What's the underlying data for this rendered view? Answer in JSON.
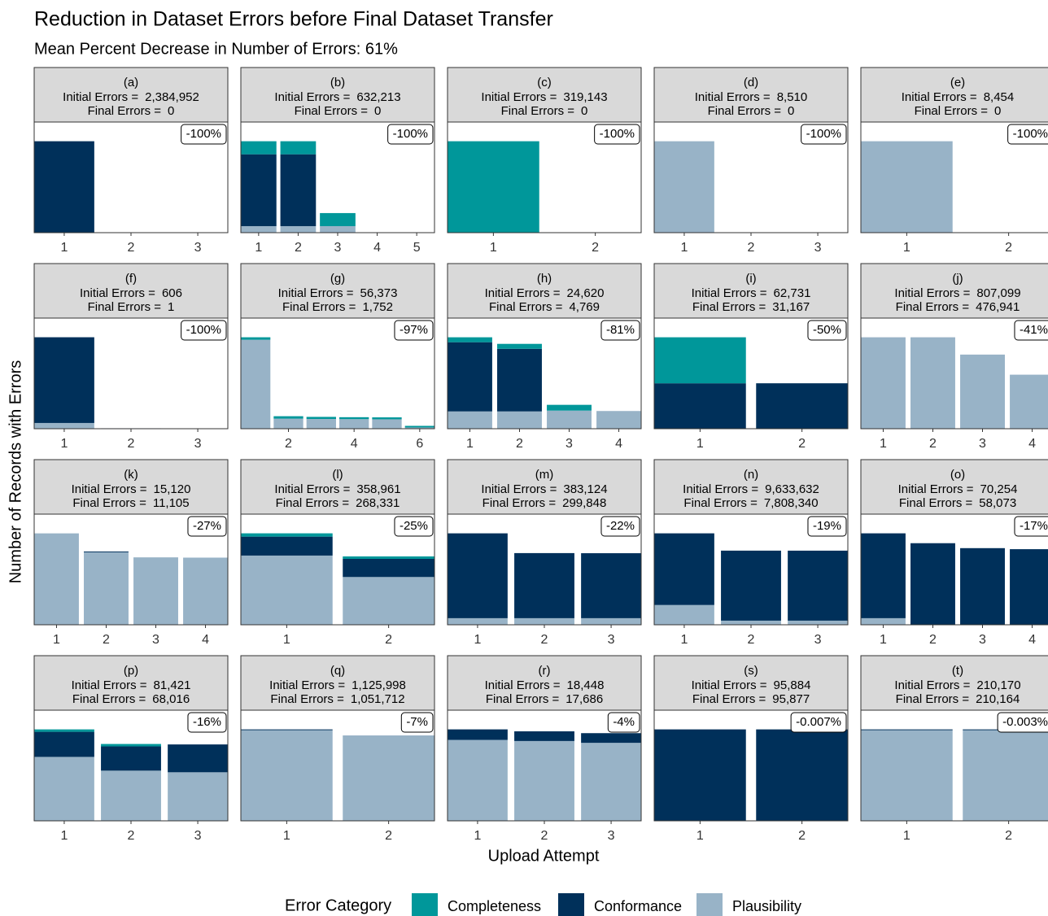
{
  "page": {
    "title": "Reduction in Dataset Errors before Final Dataset Transfer",
    "subtitle": "Mean Percent Decrease in Number of Errors: 61%",
    "x_label": "Upload Attempt",
    "y_label": "Number of Records with Errors",
    "legend_title": "Error Category"
  },
  "chart_data": [
    {
      "type": "bar",
      "title": "(a)",
      "initial_label": "Initial Errors =",
      "initial_value": "2,384,952",
      "final_label": "Final Errors =",
      "final_value": "0",
      "annotation": "-100%",
      "x": [
        1,
        2,
        3
      ],
      "xticks": [
        1,
        2,
        3
      ],
      "xlim": [
        0.55,
        3.45
      ],
      "ylim": [
        0,
        2886000
      ],
      "series": [
        {
          "name": "Completeness",
          "color": "#00979a",
          "values": [
            0,
            0,
            0
          ]
        },
        {
          "name": "Conformance",
          "color": "#00305a",
          "values": [
            2384952,
            0,
            0
          ]
        },
        {
          "name": "Plausibility",
          "color": "#98b3c7",
          "values": [
            0,
            0,
            0
          ]
        }
      ]
    },
    {
      "type": "bar",
      "title": "(b)",
      "initial_label": "Initial Errors =",
      "initial_value": "632,213",
      "final_label": "Final Errors =",
      "final_value": "0",
      "annotation": "-100%",
      "x": [
        1,
        2,
        3,
        4,
        5
      ],
      "xticks": [
        1,
        2,
        3,
        4,
        5
      ],
      "xlim": [
        0.55,
        5.45
      ],
      "ylim": [
        0,
        765000
      ],
      "series": [
        {
          "name": "Completeness",
          "color": "#00979a",
          "values": [
            90300,
            90300,
            90300,
            0,
            0
          ]
        },
        {
          "name": "Conformance",
          "color": "#00305a",
          "values": [
            496813,
            496813,
            0,
            0,
            0
          ]
        },
        {
          "name": "Plausibility",
          "color": "#98b3c7",
          "values": [
            45100,
            45100,
            45100,
            0,
            0
          ]
        }
      ]
    },
    {
      "type": "bar",
      "title": "(c)",
      "initial_label": "Initial Errors =",
      "initial_value": "319,143",
      "final_label": "Final Errors =",
      "final_value": "0",
      "annotation": "-100%",
      "x": [
        1,
        2
      ],
      "xticks": [
        1,
        2
      ],
      "xlim": [
        0.55,
        2.45
      ],
      "ylim": [
        0,
        386200
      ],
      "series": [
        {
          "name": "Completeness",
          "color": "#00979a",
          "values": [
            319143,
            0
          ]
        },
        {
          "name": "Conformance",
          "color": "#00305a",
          "values": [
            0,
            0
          ]
        },
        {
          "name": "Plausibility",
          "color": "#98b3c7",
          "values": [
            0,
            0
          ]
        }
      ]
    },
    {
      "type": "bar",
      "title": "(d)",
      "initial_label": "Initial Errors =",
      "initial_value": "8,510",
      "final_label": "Final Errors =",
      "final_value": "0",
      "annotation": "-100%",
      "x": [
        1,
        2,
        3
      ],
      "xticks": [
        1,
        2,
        3
      ],
      "xlim": [
        0.55,
        3.45
      ],
      "ylim": [
        0,
        10300
      ],
      "series": [
        {
          "name": "Completeness",
          "color": "#00979a",
          "values": [
            0,
            0,
            0
          ]
        },
        {
          "name": "Conformance",
          "color": "#00305a",
          "values": [
            0,
            0,
            0
          ]
        },
        {
          "name": "Plausibility",
          "color": "#98b3c7",
          "values": [
            8510,
            0,
            0
          ]
        }
      ]
    },
    {
      "type": "bar",
      "title": "(e)",
      "initial_label": "Initial Errors =",
      "initial_value": "8,454",
      "final_label": "Final Errors =",
      "final_value": "0",
      "annotation": "-100%",
      "x": [
        1,
        2
      ],
      "xticks": [
        1,
        2
      ],
      "xlim": [
        0.55,
        2.45
      ],
      "ylim": [
        0,
        10230
      ],
      "series": [
        {
          "name": "Completeness",
          "color": "#00979a",
          "values": [
            0,
            0
          ]
        },
        {
          "name": "Conformance",
          "color": "#00305a",
          "values": [
            0,
            0
          ]
        },
        {
          "name": "Plausibility",
          "color": "#98b3c7",
          "values": [
            8454,
            0
          ]
        }
      ]
    },
    {
      "type": "bar",
      "title": "(f)",
      "initial_label": "Initial Errors =",
      "initial_value": "606",
      "final_label": "Final Errors =",
      "final_value": "1",
      "annotation": "-100%",
      "x": [
        1,
        2,
        3
      ],
      "xticks": [
        1,
        2,
        3
      ],
      "xlim": [
        0.55,
        3.45
      ],
      "ylim": [
        0,
        733
      ],
      "series": [
        {
          "name": "Completeness",
          "color": "#00979a",
          "values": [
            0,
            0,
            0
          ]
        },
        {
          "name": "Conformance",
          "color": "#00305a",
          "values": [
            568,
            0,
            0
          ]
        },
        {
          "name": "Plausibility",
          "color": "#98b3c7",
          "values": [
            38,
            3,
            1
          ]
        }
      ]
    },
    {
      "type": "bar",
      "title": "(g)",
      "initial_label": "Initial Errors =",
      "initial_value": "56,373",
      "final_label": "Final Errors =",
      "final_value": "1,752",
      "annotation": "-97%",
      "x": [
        1,
        2,
        3,
        4,
        5,
        6
      ],
      "xticks": [
        2,
        4,
        6
      ],
      "xlim": [
        0.55,
        6.45
      ],
      "ylim": [
        0,
        68210
      ],
      "series": [
        {
          "name": "Completeness",
          "color": "#00979a",
          "values": [
            1520,
            1500,
            1300,
            1200,
            1200,
            1000
          ]
        },
        {
          "name": "Conformance",
          "color": "#00305a",
          "values": [
            0,
            0,
            0,
            0,
            0,
            0
          ]
        },
        {
          "name": "Plausibility",
          "color": "#98b3c7",
          "values": [
            54853,
            6200,
            6000,
            5900,
            5800,
            752
          ]
        }
      ]
    },
    {
      "type": "bar",
      "title": "(h)",
      "initial_label": "Initial Errors =",
      "initial_value": "24,620",
      "final_label": "Final Errors =",
      "final_value": "4,769",
      "annotation": "-81%",
      "x": [
        1,
        2,
        3,
        4
      ],
      "xticks": [
        1,
        2,
        3,
        4
      ],
      "xlim": [
        0.55,
        4.45
      ],
      "ylim": [
        0,
        29790
      ],
      "series": [
        {
          "name": "Completeness",
          "color": "#00979a",
          "values": [
            1331,
            1331,
            1550,
            0
          ]
        },
        {
          "name": "Conformance",
          "color": "#00305a",
          "values": [
            18631,
            16857,
            0,
            0
          ]
        },
        {
          "name": "Plausibility",
          "color": "#98b3c7",
          "values": [
            4658,
            4658,
            4880,
            4769
          ]
        }
      ]
    },
    {
      "type": "bar",
      "title": "(i)",
      "initial_label": "Initial Errors =",
      "initial_value": "62,731",
      "final_label": "Final Errors =",
      "final_value": "31,167",
      "annotation": "-50%",
      "x": [
        1,
        2
      ],
      "xticks": [
        1,
        2
      ],
      "xlim": [
        0.55,
        2.45
      ],
      "ylim": [
        0,
        75900
      ],
      "series": [
        {
          "name": "Completeness",
          "color": "#00979a",
          "values": [
            31564,
            0
          ]
        },
        {
          "name": "Conformance",
          "color": "#00305a",
          "values": [
            31167,
            31167
          ]
        },
        {
          "name": "Plausibility",
          "color": "#98b3c7",
          "values": [
            0,
            0
          ]
        }
      ]
    },
    {
      "type": "bar",
      "title": "(j)",
      "initial_label": "Initial Errors =",
      "initial_value": "807,099",
      "final_label": "Final Errors =",
      "final_value": "476,941",
      "annotation": "-41%",
      "x": [
        1,
        2,
        3,
        4
      ],
      "xticks": [
        1,
        2,
        3,
        4
      ],
      "xlim": [
        0.55,
        4.45
      ],
      "ylim": [
        0,
        976600
      ],
      "series": [
        {
          "name": "Completeness",
          "color": "#00979a",
          "values": [
            0,
            0,
            0,
            0
          ]
        },
        {
          "name": "Conformance",
          "color": "#00305a",
          "values": [
            0,
            0,
            0,
            0
          ]
        },
        {
          "name": "Plausibility",
          "color": "#98b3c7",
          "values": [
            807099,
            807099,
            654400,
            476941
          ]
        }
      ]
    },
    {
      "type": "bar",
      "title": "(k)",
      "initial_label": "Initial Errors =",
      "initial_value": "15,120",
      "final_label": "Final Errors =",
      "final_value": "11,105",
      "annotation": "-27%",
      "x": [
        1,
        2,
        3,
        4
      ],
      "xticks": [
        1,
        2,
        3,
        4
      ],
      "xlim": [
        0.55,
        4.45
      ],
      "ylim": [
        0,
        18300
      ],
      "series": [
        {
          "name": "Completeness",
          "color": "#00979a",
          "values": [
            0,
            0,
            0,
            0
          ]
        },
        {
          "name": "Conformance",
          "color": "#00305a",
          "values": [
            0,
            136,
            0,
            0
          ]
        },
        {
          "name": "Plausibility",
          "color": "#98b3c7",
          "values": [
            15120,
            11988,
            11150,
            11105
          ]
        }
      ]
    },
    {
      "type": "bar",
      "title": "(l)",
      "initial_label": "Initial Errors =",
      "initial_value": "358,961",
      "final_label": "Final Errors =",
      "final_value": "268,331",
      "annotation": "-25%",
      "x": [
        1,
        2
      ],
      "xticks": [
        1,
        2
      ],
      "xlim": [
        0.55,
        2.45
      ],
      "ylim": [
        0,
        434300
      ],
      "series": [
        {
          "name": "Completeness",
          "color": "#00979a",
          "values": [
            12936,
            9700
          ]
        },
        {
          "name": "Conformance",
          "color": "#00305a",
          "values": [
            74382,
            71150
          ]
        },
        {
          "name": "Plausibility",
          "color": "#98b3c7",
          "values": [
            271643,
            187481
          ]
        }
      ]
    },
    {
      "type": "bar",
      "title": "(m)",
      "initial_label": "Initial Errors =",
      "initial_value": "383,124",
      "final_label": "Final Errors =",
      "final_value": "299,848",
      "annotation": "-22%",
      "x": [
        1,
        2,
        3
      ],
      "xticks": [
        1,
        2,
        3
      ],
      "xlim": [
        0.55,
        3.45
      ],
      "ylim": [
        0,
        463600
      ],
      "series": [
        {
          "name": "Completeness",
          "color": "#00979a",
          "values": [
            0,
            0,
            0
          ]
        },
        {
          "name": "Conformance",
          "color": "#00305a",
          "values": [
            355524,
            272700,
            272248
          ]
        },
        {
          "name": "Plausibility",
          "color": "#98b3c7",
          "values": [
            27600,
            27600,
            27600
          ]
        }
      ]
    },
    {
      "type": "bar",
      "title": "(n)",
      "initial_label": "Initial Errors =",
      "initial_value": "9,633,632",
      "final_label": "Final Errors =",
      "final_value": "7,808,340",
      "annotation": "-19%",
      "x": [
        1,
        2,
        3
      ],
      "xticks": [
        1,
        2,
        3
      ],
      "xlim": [
        0.55,
        3.45
      ],
      "ylim": [
        0,
        11656700
      ],
      "series": [
        {
          "name": "Completeness",
          "color": "#00979a",
          "values": [
            0,
            0,
            0
          ]
        },
        {
          "name": "Conformance",
          "color": "#00305a",
          "values": [
            7550732,
            7377000,
            7374340
          ]
        },
        {
          "name": "Plausibility",
          "color": "#98b3c7",
          "values": [
            2082900,
            434000,
            434000
          ]
        }
      ]
    },
    {
      "type": "bar",
      "title": "(o)",
      "initial_label": "Initial Errors =",
      "initial_value": "70,254",
      "final_label": "Final Errors =",
      "final_value": "58,073",
      "annotation": "-17%",
      "x": [
        1,
        2,
        3,
        4
      ],
      "xticks": [
        1,
        2,
        3,
        4
      ],
      "xlim": [
        0.55,
        4.45
      ],
      "ylim": [
        0,
        85000
      ],
      "series": [
        {
          "name": "Completeness",
          "color": "#00979a",
          "values": [
            0,
            0,
            0,
            0
          ]
        },
        {
          "name": "Conformance",
          "color": "#00305a",
          "values": [
            65194,
            62670,
            58870,
            58073
          ]
        },
        {
          "name": "Plausibility",
          "color": "#98b3c7",
          "values": [
            5060,
            0,
            0,
            0
          ]
        }
      ]
    },
    {
      "type": "bar",
      "title": "(p)",
      "initial_label": "Initial Errors =",
      "initial_value": "81,421",
      "final_label": "Final Errors =",
      "final_value": "68,016",
      "annotation": "-16%",
      "x": [
        1,
        2,
        3
      ],
      "xticks": [
        1,
        2,
        3
      ],
      "xlim": [
        0.55,
        3.45
      ],
      "ylim": [
        0,
        98520
      ],
      "series": [
        {
          "name": "Completeness",
          "color": "#00979a",
          "values": [
            2160,
            2160,
            0
          ]
        },
        {
          "name": "Conformance",
          "color": "#00305a",
          "values": [
            22340,
            21600,
            24786
          ]
        },
        {
          "name": "Plausibility",
          "color": "#98b3c7",
          "values": [
            56921,
            44670,
            43230
          ]
        }
      ]
    },
    {
      "type": "bar",
      "title": "(q)",
      "initial_label": "Initial Errors =",
      "initial_value": "1,125,998",
      "final_label": "Final Errors =",
      "final_value": "1,051,712",
      "annotation": "-7%",
      "x": [
        1,
        2
      ],
      "xticks": [
        1,
        2
      ],
      "xlim": [
        0.55,
        2.45
      ],
      "ylim": [
        0,
        1362500
      ],
      "series": [
        {
          "name": "Completeness",
          "color": "#00979a",
          "values": [
            0,
            0
          ]
        },
        {
          "name": "Conformance",
          "color": "#00305a",
          "values": [
            10000,
            0
          ]
        },
        {
          "name": "Plausibility",
          "color": "#98b3c7",
          "values": [
            1115998,
            1051712
          ]
        }
      ]
    },
    {
      "type": "bar",
      "title": "(r)",
      "initial_label": "Initial Errors =",
      "initial_value": "18,448",
      "final_label": "Final Errors =",
      "final_value": "17,686",
      "annotation": "-4%",
      "x": [
        1,
        2,
        3
      ],
      "xticks": [
        1,
        2,
        3
      ],
      "xlim": [
        0.55,
        3.45
      ],
      "ylim": [
        0,
        22320
      ],
      "series": [
        {
          "name": "Completeness",
          "color": "#00979a",
          "values": [
            0,
            0,
            0
          ]
        },
        {
          "name": "Conformance",
          "color": "#00305a",
          "values": [
            2120,
            1956,
            1956
          ]
        },
        {
          "name": "Plausibility",
          "color": "#98b3c7",
          "values": [
            16328,
            16100,
            15730
          ]
        }
      ]
    },
    {
      "type": "bar",
      "title": "(s)",
      "initial_label": "Initial Errors =",
      "initial_value": "95,884",
      "final_label": "Final Errors =",
      "final_value": "95,877",
      "annotation": "-0.007%",
      "x": [
        1,
        2
      ],
      "xticks": [
        1,
        2
      ],
      "xlim": [
        0.55,
        2.45
      ],
      "ylim": [
        0,
        116020
      ],
      "series": [
        {
          "name": "Completeness",
          "color": "#00979a",
          "values": [
            0,
            0
          ]
        },
        {
          "name": "Conformance",
          "color": "#00305a",
          "values": [
            95884,
            95877
          ]
        },
        {
          "name": "Plausibility",
          "color": "#98b3c7",
          "values": [
            0,
            0
          ]
        }
      ]
    },
    {
      "type": "bar",
      "title": "(t)",
      "initial_label": "Initial Errors =",
      "initial_value": "210,170",
      "final_label": "Final Errors =",
      "final_value": "210,164",
      "annotation": "-0.003%",
      "x": [
        1,
        2
      ],
      "xticks": [
        1,
        2
      ],
      "xlim": [
        0.55,
        2.45
      ],
      "ylim": [
        0,
        254300
      ],
      "series": [
        {
          "name": "Completeness",
          "color": "#00979a",
          "values": [
            0,
            0
          ]
        },
        {
          "name": "Conformance",
          "color": "#00305a",
          "values": [
            1870,
            1864
          ]
        },
        {
          "name": "Plausibility",
          "color": "#98b3c7",
          "values": [
            208300,
            208300
          ]
        }
      ]
    }
  ]
}
